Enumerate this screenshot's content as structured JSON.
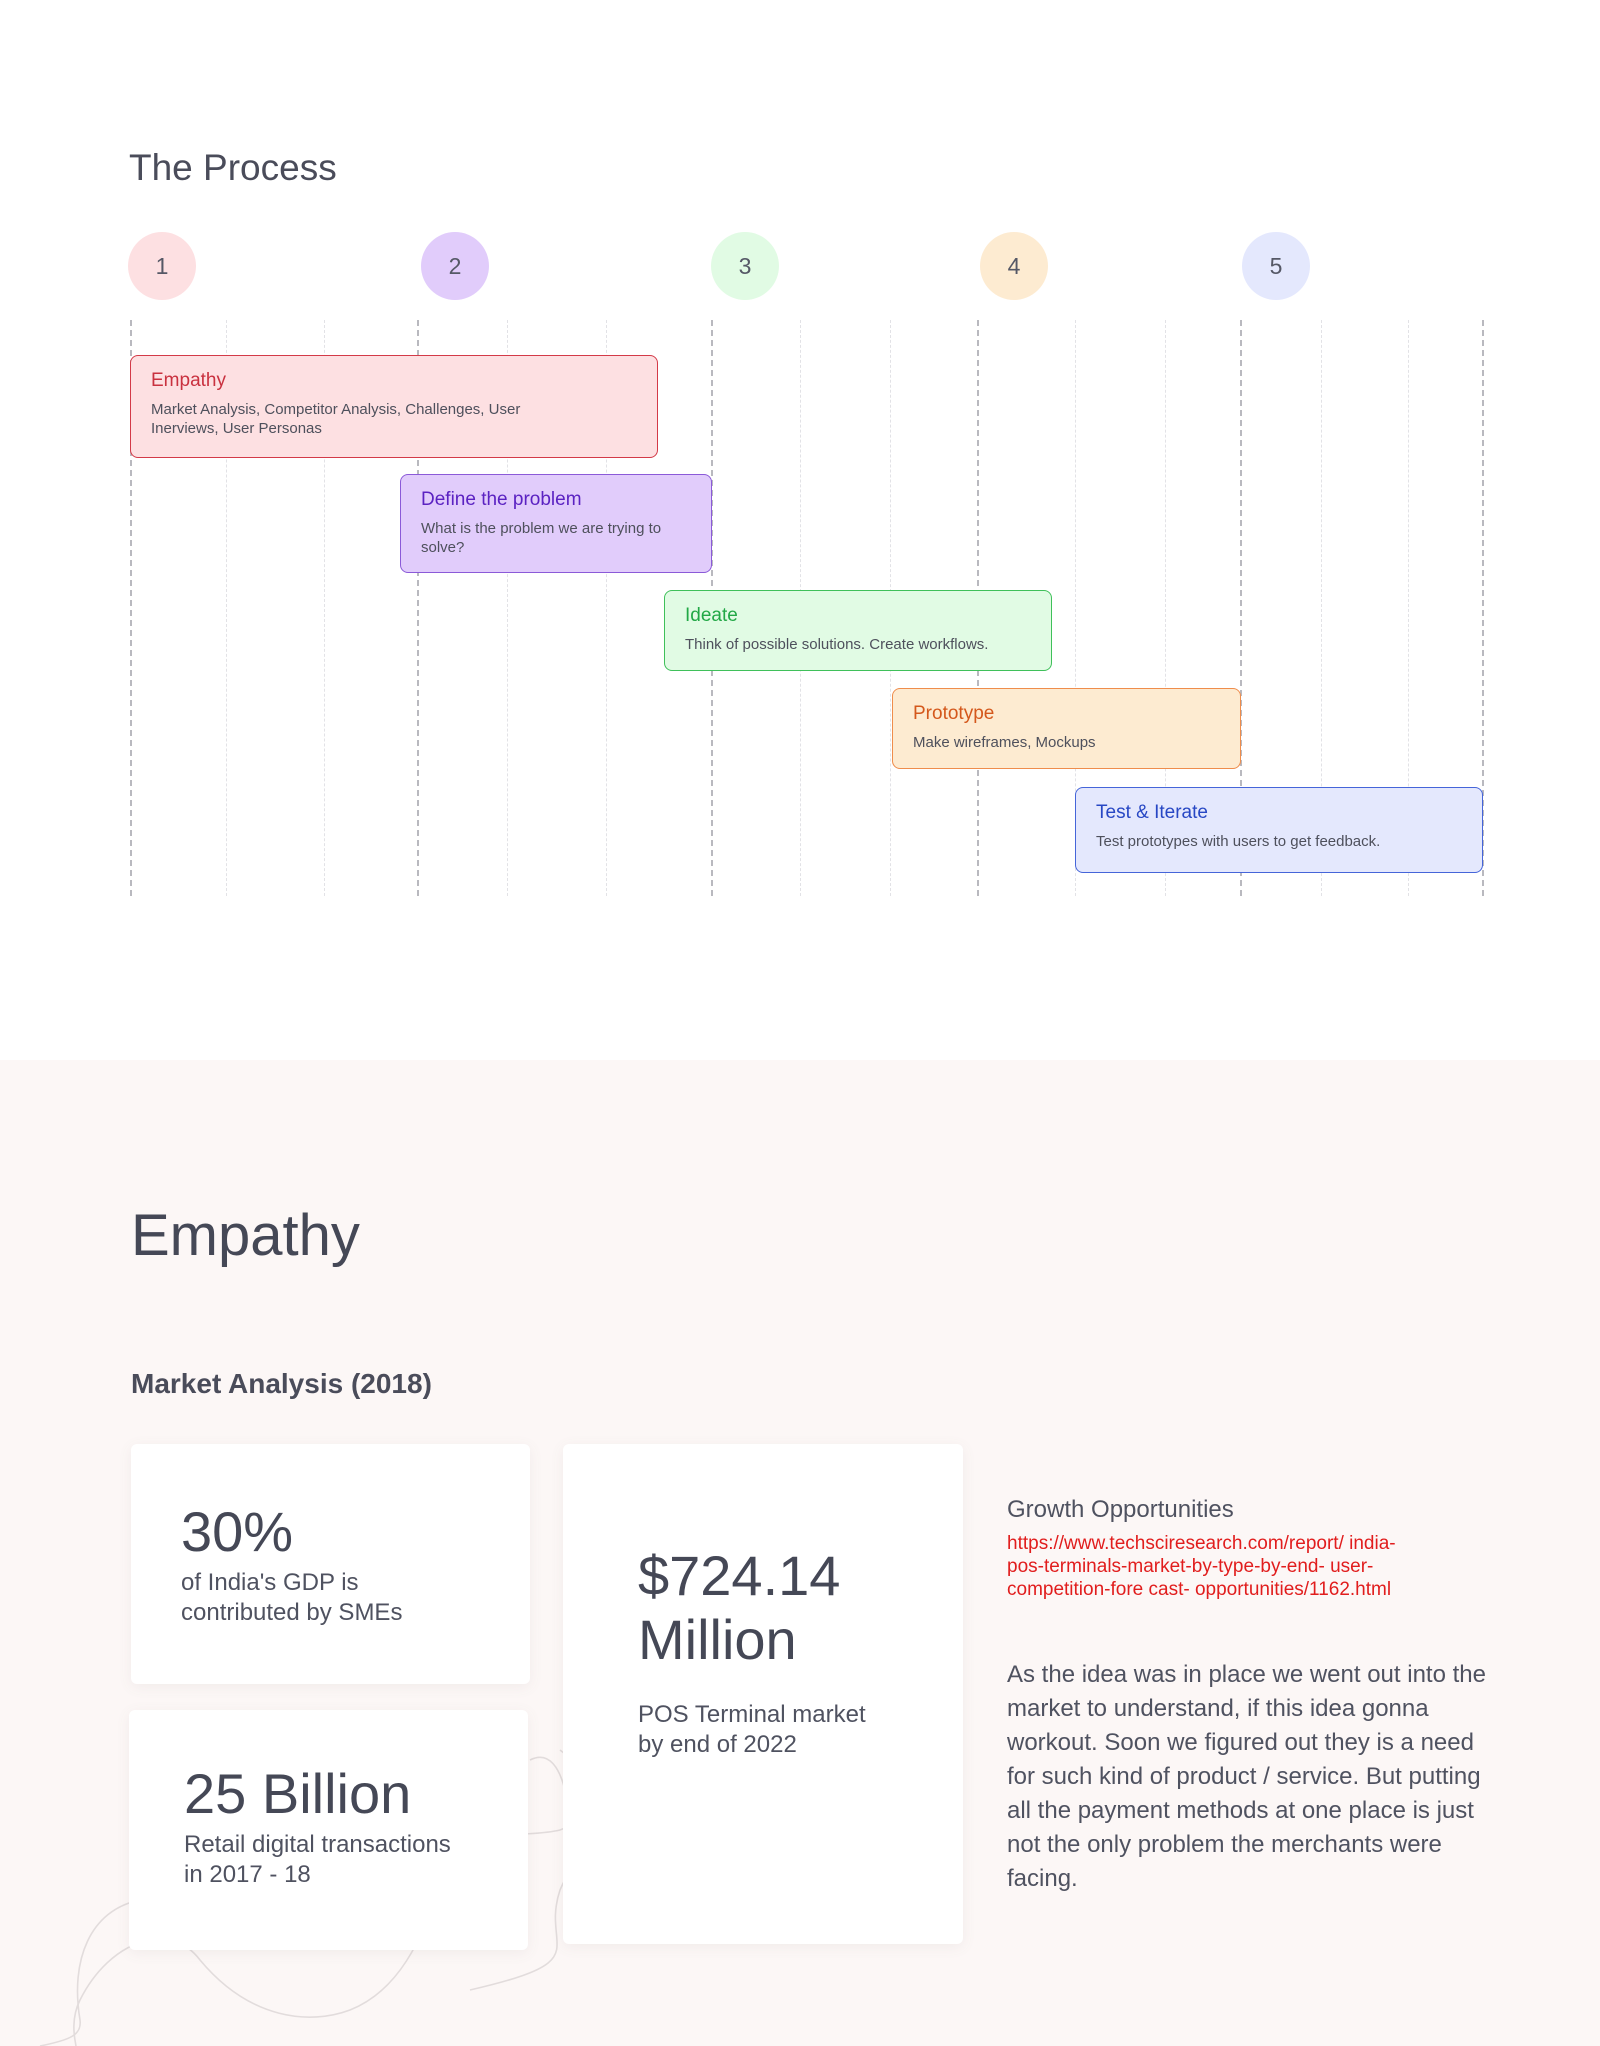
{
  "process": {
    "title": "The Process",
    "steps": [
      {
        "number": "1",
        "color": "#fde0e2"
      },
      {
        "number": "2",
        "color": "#e1ccfb"
      },
      {
        "number": "3",
        "color": "#e1fbe4"
      },
      {
        "number": "4",
        "color": "#fdebd1"
      },
      {
        "number": "5",
        "color": "#e4e8fd"
      }
    ],
    "phases": [
      {
        "title": "Empathy",
        "description": "Market Analysis, Competitor Analysis, Challenges, User Inerviews, User Personas",
        "bg": "#fde0e2",
        "border": "#d33a48",
        "title_color": "#c9313f"
      },
      {
        "title": "Define the problem",
        "description": "What is the problem we are trying to solve?",
        "bg": "#e1ccfb",
        "border": "#8b5ad8",
        "title_color": "#5b22c2"
      },
      {
        "title": "Ideate",
        "description": "Think of possible solutions. Create workflows.",
        "bg": "#e1fbe4",
        "border": "#3fc05a",
        "title_color": "#22a846"
      },
      {
        "title": "Prototype",
        "description": "Make wireframes, Mockups",
        "bg": "#fdebd1",
        "border": "#ef8d4c",
        "title_color": "#d4581c"
      },
      {
        "title": "Test & Iterate",
        "description": "Test prototypes with users to get feedback.",
        "bg": "#e4e8fd",
        "border": "#4565d9",
        "title_color": "#2747c4"
      }
    ]
  },
  "empathy": {
    "heading": "Empathy",
    "subheading": "Market Analysis (2018)",
    "stats": [
      {
        "value": "30%",
        "caption": "of India's GDP is contributed by SMEs"
      },
      {
        "value": "25 Billion",
        "caption": "Retail digital transactions in 2017 - 18"
      },
      {
        "value": "$724.14 Million",
        "caption": "POS Terminal market by end of 2022"
      }
    ],
    "growth": {
      "title": "Growth Opportunities",
      "link": "https://www.techsciresearch.com/report/ india-pos-terminals-market-by-type-by-end- user-competition-fore cast- opportunities/1162.html"
    },
    "body": "As the idea was in place we went out into the market to understand, if this idea gonna workout. Soon we figured out they is a need for such kind of product / service. But putting all the payment methods at one place is just not the only problem the merchants were facing."
  }
}
